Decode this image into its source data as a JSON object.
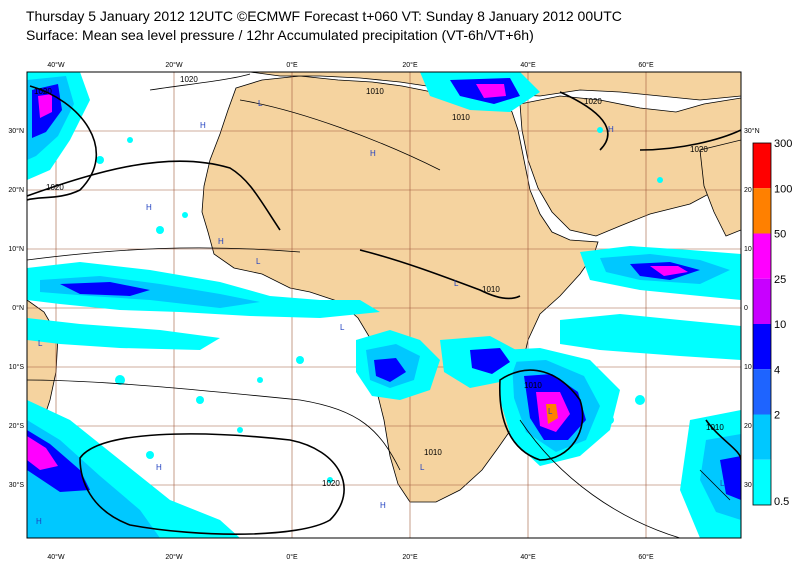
{
  "header": {
    "line1": "Thursday 5 January 2012 12UTC ©ECMWF Forecast t+060 VT: Sunday 8 January 2012 00UTC",
    "line2": "Surface: Mean sea level pressure / 12hr Accumulated precipitation (VT-6h/VT+6h)"
  },
  "axes": {
    "lon_bottom": [
      "40°W",
      "20°W",
      "0°E",
      "20°E",
      "40°E",
      "60°E"
    ],
    "lon_top": [
      "40°W",
      "20°W",
      "0°E",
      "20°E",
      "40°E",
      "60°E"
    ],
    "lat_left": [
      "30°N",
      "20°N",
      "10°N",
      "0°N",
      "10°S",
      "20°S",
      "30°S"
    ],
    "lat_right": [
      "30°N",
      "20",
      "10",
      "0",
      "10",
      "20",
      "30"
    ]
  },
  "legend": {
    "levels": [
      "300",
      "100",
      "50",
      "25",
      "10",
      "4",
      "2",
      "0.5"
    ],
    "colors": [
      "#ff0000",
      "#ff8000",
      "#ff00ff",
      "#c800ff",
      "#0000ff",
      "#1e64ff",
      "#00c8ff",
      "#00ffff"
    ]
  },
  "isobar_labels": [
    "1020",
    "1020",
    "1010",
    "1020",
    "1020",
    "1010",
    "1010",
    "1010",
    "1010",
    "1010",
    "1020",
    "1020"
  ],
  "pressure_centres": [
    "H",
    "H",
    "H",
    "H",
    "L",
    "L",
    "L",
    "L",
    "L",
    "L",
    "L",
    "H",
    "H",
    "L",
    "H",
    "H"
  ],
  "colors": {
    "land": "#f5d39f",
    "ocean": "#ffffff",
    "grid": "#a05a3c",
    "coast": "#000000"
  }
}
